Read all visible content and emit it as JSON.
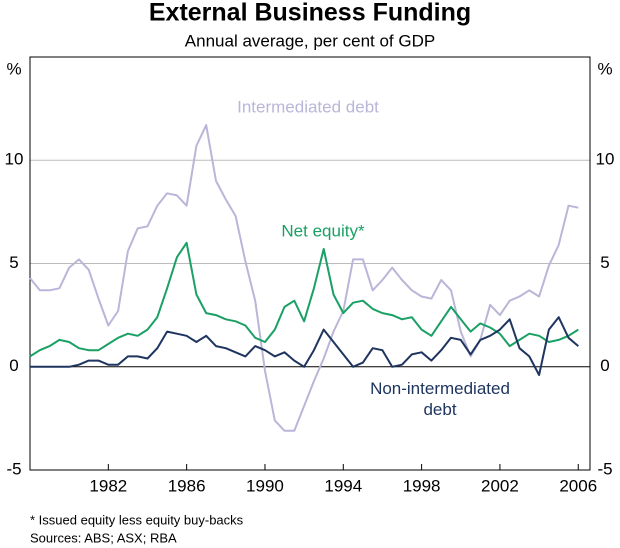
{
  "chart_data": {
    "type": "line",
    "title": "External Business Funding",
    "subtitle": "Annual average, per cent of GDP",
    "y_label": "%",
    "y2_label": "%",
    "x": [
      1978.0,
      1978.5,
      1979.0,
      1979.5,
      1980.0,
      1980.5,
      1981.0,
      1981.5,
      1982.0,
      1982.5,
      1983.0,
      1983.5,
      1984.0,
      1984.5,
      1985.0,
      1985.5,
      1986.0,
      1986.5,
      1987.0,
      1987.5,
      1988.0,
      1988.5,
      1989.0,
      1989.5,
      1990.0,
      1990.5,
      1991.0,
      1991.5,
      1992.0,
      1992.5,
      1993.0,
      1993.5,
      1994.0,
      1994.5,
      1995.0,
      1995.5,
      1996.0,
      1996.5,
      1997.0,
      1997.5,
      1998.0,
      1998.5,
      1999.0,
      1999.5,
      2000.0,
      2000.5,
      2001.0,
      2001.5,
      2002.0,
      2002.5,
      2003.0,
      2003.5,
      2004.0,
      2004.5,
      2005.0,
      2005.5,
      2006.0
    ],
    "series": [
      {
        "name": "Intermediated debt",
        "color": "#b9b6d9",
        "values": [
          4.3,
          3.7,
          3.7,
          3.8,
          4.8,
          5.2,
          4.7,
          3.3,
          2.0,
          2.7,
          5.6,
          6.7,
          6.8,
          7.8,
          8.4,
          8.3,
          7.8,
          10.7,
          11.7,
          9.0,
          8.1,
          7.3,
          5.1,
          3.2,
          -0.2,
          -2.6,
          -3.1,
          -3.1,
          -1.9,
          -0.7,
          0.4,
          1.7,
          2.7,
          5.2,
          5.2,
          3.7,
          4.2,
          4.8,
          4.2,
          3.7,
          3.4,
          3.3,
          4.2,
          3.7,
          1.7,
          0.5,
          1.3,
          3.0,
          2.5,
          3.2,
          3.4,
          3.7,
          3.4,
          4.9,
          5.9,
          7.8,
          7.7
        ]
      },
      {
        "name": "Net equity*",
        "color": "#1aa064",
        "values": [
          0.5,
          0.8,
          1.0,
          1.3,
          1.2,
          0.9,
          0.8,
          0.8,
          1.1,
          1.4,
          1.6,
          1.5,
          1.8,
          2.4,
          3.8,
          5.3,
          6.0,
          3.5,
          2.6,
          2.5,
          2.3,
          2.2,
          2.0,
          1.4,
          1.2,
          1.8,
          2.9,
          3.2,
          2.2,
          3.8,
          5.7,
          3.5,
          2.6,
          3.1,
          3.2,
          2.8,
          2.6,
          2.5,
          2.3,
          2.4,
          1.8,
          1.5,
          2.2,
          2.9,
          2.3,
          1.7,
          2.1,
          1.9,
          1.6,
          1.0,
          1.3,
          1.6,
          1.5,
          1.2,
          1.3,
          1.5,
          1.8
        ]
      },
      {
        "name": "Non-intermediated debt",
        "color": "#1e3560",
        "values": [
          0,
          0,
          0,
          0,
          0,
          0.1,
          0.3,
          0.3,
          0.1,
          0.1,
          0.5,
          0.5,
          0.4,
          0.9,
          1.7,
          1.6,
          1.5,
          1.2,
          1.5,
          1.0,
          0.9,
          0.7,
          0.5,
          1.0,
          0.8,
          0.5,
          0.7,
          0.3,
          0,
          0.8,
          1.8,
          1.2,
          0.6,
          0,
          0.2,
          0.9,
          0.8,
          0,
          0.1,
          0.6,
          0.7,
          0.3,
          0.8,
          1.4,
          1.3,
          0.6,
          1.3,
          1.5,
          1.8,
          2.3,
          0.9,
          0.5,
          -0.4,
          1.8,
          2.4,
          1.4,
          1.0
        ]
      }
    ],
    "xlim": [
      1978,
      2006.6
    ],
    "xticks": [
      1982,
      1986,
      1990,
      1994,
      1998,
      2002,
      2006
    ],
    "ylim": [
      -5,
      15
    ],
    "yticks": [
      -5,
      0,
      5,
      10
    ],
    "y2lim": [
      -5,
      15
    ],
    "y2ticks": [
      -5,
      0,
      5,
      10
    ],
    "grid": true,
    "footnotes": [
      "*   Issued equity less equity buy-backs",
      "Sources: ABS; ASX; RBA"
    ]
  }
}
